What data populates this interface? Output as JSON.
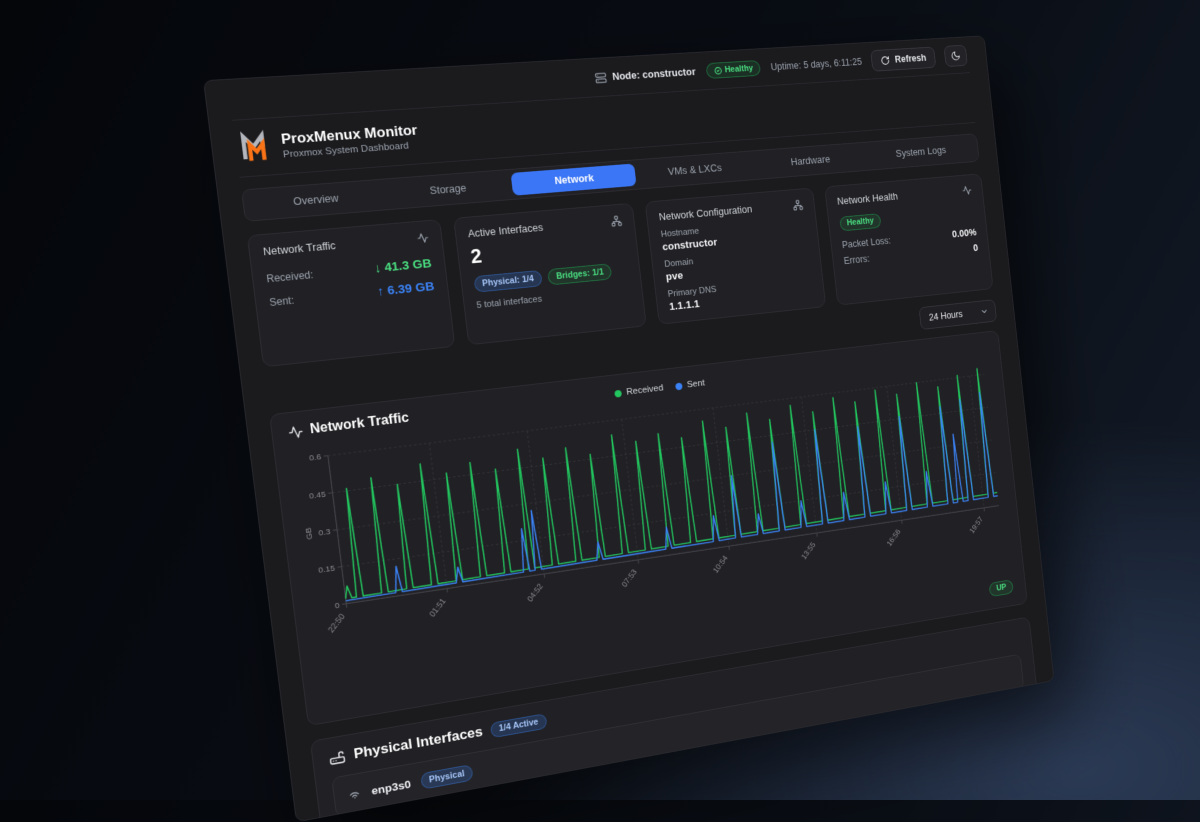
{
  "topbar": {
    "node_label": "Node: constructor",
    "health_badge": "Healthy",
    "uptime": "Uptime: 5 days, 6:11:25",
    "refresh_label": "Refresh"
  },
  "header": {
    "title": "ProxMenux Monitor",
    "subtitle": "Proxmox System Dashboard"
  },
  "tabs": {
    "items": [
      {
        "label": "Overview",
        "active": false
      },
      {
        "label": "Storage",
        "active": false
      },
      {
        "label": "Network",
        "active": true
      },
      {
        "label": "VMs & LXCs",
        "active": false
      },
      {
        "label": "Hardware",
        "active": false
      },
      {
        "label": "System Logs",
        "active": false
      }
    ]
  },
  "cards": {
    "traffic": {
      "title": "Network Traffic",
      "received_label": "Received:",
      "received_value": "↓ 41.3 GB",
      "sent_label": "Sent:",
      "sent_value": "↑ 6.39 GB"
    },
    "interfaces": {
      "title": "Active Interfaces",
      "count": "2",
      "physical_badge": "Physical: 1/4",
      "bridges_badge": "Bridges: 1/1",
      "total_note": "5 total interfaces"
    },
    "config": {
      "title": "Network Configuration",
      "hostname_label": "Hostname",
      "hostname": "constructor",
      "domain_label": "Domain",
      "domain": "pve",
      "dns_label": "Primary DNS",
      "dns": "1.1.1.1"
    },
    "health": {
      "title": "Network Health",
      "status_badge": "Healthy",
      "packet_loss_label": "Packet Loss:",
      "packet_loss": "0.00%",
      "errors_label": "Errors:",
      "errors": "0"
    }
  },
  "timeframe": {
    "value": "24 Hours"
  },
  "chart_section": {
    "title": "Network Traffic",
    "status_badge": "UP"
  },
  "chart_data": {
    "type": "line",
    "title": "Network Traffic",
    "ylabel": "GB",
    "ylim": [
      0,
      0.6
    ],
    "yticks": [
      0,
      0.15,
      0.3,
      0.45,
      0.6
    ],
    "xticks": [
      "22:50",
      "01:51",
      "04:52",
      "07:53",
      "10:54",
      "13:55",
      "16:56",
      "19:57"
    ],
    "xtick_t": [
      0,
      181,
      362,
      543,
      724,
      905,
      1086,
      1267
    ],
    "t_max": 1300,
    "grid": "dashed",
    "legend_position": "top-center",
    "series": [
      {
        "name": "Received",
        "color": "#22c55e",
        "baseline": [
          0.02,
          0.06
        ],
        "spikes": [
          {
            "t": 5,
            "v": 0.07
          },
          {
            "t": 25,
            "v": 0.46
          },
          {
            "t": 70,
            "v": 0.49
          },
          {
            "t": 115,
            "v": 0.45
          },
          {
            "t": 160,
            "v": 0.52
          },
          {
            "t": 205,
            "v": 0.47
          },
          {
            "t": 250,
            "v": 0.5
          },
          {
            "t": 295,
            "v": 0.46
          },
          {
            "t": 340,
            "v": 0.53
          },
          {
            "t": 385,
            "v": 0.48
          },
          {
            "t": 430,
            "v": 0.51
          },
          {
            "t": 475,
            "v": 0.47
          },
          {
            "t": 520,
            "v": 0.54
          },
          {
            "t": 565,
            "v": 0.5
          },
          {
            "t": 610,
            "v": 0.52
          },
          {
            "t": 655,
            "v": 0.49
          },
          {
            "t": 700,
            "v": 0.55
          },
          {
            "t": 745,
            "v": 0.51
          },
          {
            "t": 790,
            "v": 0.56
          },
          {
            "t": 835,
            "v": 0.52
          },
          {
            "t": 880,
            "v": 0.57
          },
          {
            "t": 925,
            "v": 0.53
          },
          {
            "t": 970,
            "v": 0.58
          },
          {
            "t": 1015,
            "v": 0.55
          },
          {
            "t": 1060,
            "v": 0.59
          },
          {
            "t": 1105,
            "v": 0.56
          },
          {
            "t": 1150,
            "v": 0.6
          },
          {
            "t": 1195,
            "v": 0.57
          },
          {
            "t": 1240,
            "v": 0.61
          },
          {
            "t": 1285,
            "v": 0.63
          }
        ]
      },
      {
        "name": "Sent",
        "color": "#3b82f6",
        "baseline": [
          0.012,
          0.045
        ],
        "spikes": [
          {
            "t": 95,
            "v": 0.12
          },
          {
            "t": 205,
            "v": 0.08
          },
          {
            "t": 330,
            "v": 0.2
          },
          {
            "t": 352,
            "v": 0.27
          },
          {
            "t": 470,
            "v": 0.1
          },
          {
            "t": 605,
            "v": 0.12
          },
          {
            "t": 700,
            "v": 0.14
          },
          {
            "t": 745,
            "v": 0.3
          },
          {
            "t": 790,
            "v": 0.12
          },
          {
            "t": 835,
            "v": 0.42
          },
          {
            "t": 880,
            "v": 0.15
          },
          {
            "t": 925,
            "v": 0.45
          },
          {
            "t": 970,
            "v": 0.16
          },
          {
            "t": 1015,
            "v": 0.44
          },
          {
            "t": 1060,
            "v": 0.18
          },
          {
            "t": 1105,
            "v": 0.46
          },
          {
            "t": 1150,
            "v": 0.2
          },
          {
            "t": 1195,
            "v": 0.48
          },
          {
            "t": 1217,
            "v": 0.35
          },
          {
            "t": 1240,
            "v": 0.5
          },
          {
            "t": 1285,
            "v": 0.52
          }
        ]
      }
    ]
  },
  "physical": {
    "title": "Physical Interfaces",
    "active_badge": "1/4 Active",
    "rows": [
      {
        "name": "enp3s0",
        "type_badge": "Physical"
      }
    ]
  },
  "colors": {
    "accent_blue": "#3b76f6",
    "green": "#22c55e",
    "blue": "#3b82f6",
    "logo_orange": "#f97316",
    "logo_gray": "#b3b6bc"
  }
}
